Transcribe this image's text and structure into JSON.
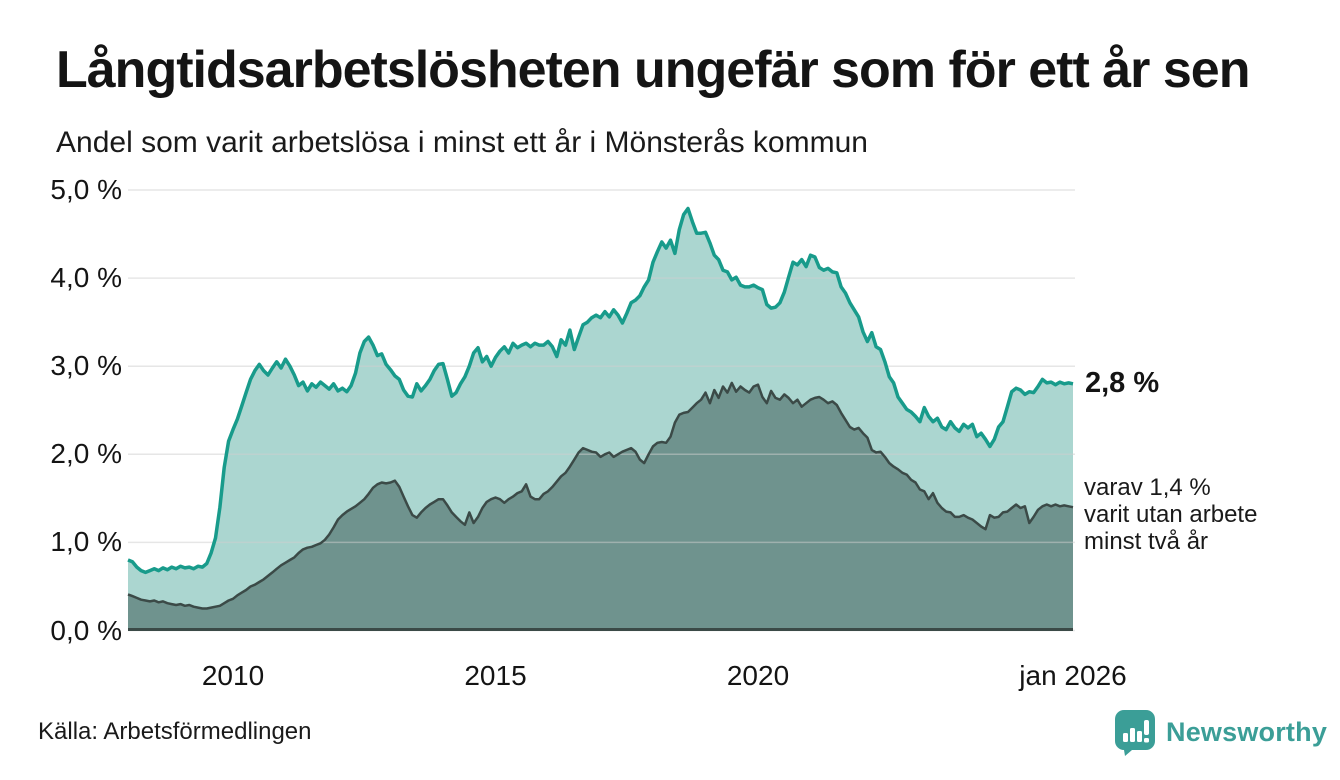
{
  "colors": {
    "accent_teal_line": "#189b8b",
    "fill_light_teal": "#abd6d0",
    "fill_dark_green": "#6f938e",
    "dark_line": "#3b4a47",
    "gridline": "#cfcfcf",
    "text": "#141414",
    "brand_teal": "#3b9e97"
  },
  "footer": {
    "source": "Källa: Arbetsförmedlingen",
    "brand": "Newsworthy",
    "brand_icon": "newsworthy-bar-chart-bubble"
  },
  "annotations": {
    "latest_value": "2,8 %",
    "latest_value_numeric": 2.8,
    "note_lines": [
      "varav 1,4 %",
      "varit utan arbete",
      "minst två år"
    ],
    "note_value_numeric": 1.4
  },
  "chart_data": {
    "type": "area",
    "title": "Långtidsarbetslösheten ungefär som för ett år sen",
    "subtitle": "Andel som varit arbetslösa i minst ett år i Mönsterås kommun",
    "x_start": "2008-01",
    "x_end": "2026-01",
    "frequency": "monthly",
    "xlim_years": [
      2008,
      2026
    ],
    "ylim": [
      0,
      5
    ],
    "grid": "horizontal",
    "legend": "direct-labels-right",
    "y_ticks": [
      {
        "value": 5,
        "label": "5,0 %"
      },
      {
        "value": 4,
        "label": "4,0 %"
      },
      {
        "value": 3,
        "label": "3,0 %"
      },
      {
        "value": 2,
        "label": "2,0 %"
      },
      {
        "value": 1,
        "label": "1,0 %"
      },
      {
        "value": 0,
        "label": "0,0 %"
      }
    ],
    "x_ticks": [
      {
        "year": 2010,
        "label": "2010"
      },
      {
        "year": 2015,
        "label": "2015"
      },
      {
        "year": 2020,
        "label": "2020"
      },
      {
        "year": 2026,
        "label": "jan 2026"
      }
    ],
    "series": [
      {
        "name": "Arbetslösa minst ett år",
        "line_color": "#189b8b",
        "fill_color": "#abd6d0",
        "end_label": "2,8 %",
        "values": [
          0.8,
          0.78,
          0.72,
          0.68,
          0.66,
          0.68,
          0.7,
          0.68,
          0.71,
          0.69,
          0.72,
          0.7,
          0.73,
          0.71,
          0.72,
          0.7,
          0.73,
          0.72,
          0.76,
          0.88,
          1.05,
          1.4,
          1.85,
          2.15,
          2.28,
          2.4,
          2.55,
          2.7,
          2.85,
          2.95,
          3.02,
          2.95,
          2.9,
          2.98,
          3.05,
          2.98,
          3.08,
          3.0,
          2.9,
          2.78,
          2.82,
          2.72,
          2.8,
          2.76,
          2.82,
          2.78,
          2.74,
          2.8,
          2.72,
          2.75,
          2.71,
          2.78,
          2.92,
          3.15,
          3.28,
          3.33,
          3.24,
          3.12,
          3.14,
          3.02,
          2.96,
          2.89,
          2.85,
          2.73,
          2.66,
          2.65,
          2.8,
          2.72,
          2.78,
          2.85,
          2.95,
          3.02,
          3.03,
          2.85,
          2.66,
          2.7,
          2.8,
          2.88,
          3.0,
          3.15,
          3.21,
          3.05,
          3.11,
          3.0,
          3.1,
          3.17,
          3.22,
          3.15,
          3.26,
          3.21,
          3.24,
          3.26,
          3.22,
          3.26,
          3.24,
          3.24,
          3.28,
          3.22,
          3.11,
          3.3,
          3.24,
          3.41,
          3.19,
          3.33,
          3.47,
          3.5,
          3.55,
          3.58,
          3.55,
          3.62,
          3.56,
          3.64,
          3.58,
          3.49,
          3.6,
          3.72,
          3.75,
          3.8,
          3.9,
          3.98,
          4.18,
          4.3,
          4.41,
          4.34,
          4.43,
          4.28,
          4.55,
          4.72,
          4.79,
          4.64,
          4.51,
          4.51,
          4.52,
          4.4,
          4.26,
          4.21,
          4.09,
          4.07,
          3.98,
          4.01,
          3.92,
          3.9,
          3.9,
          3.92,
          3.89,
          3.87,
          3.7,
          3.66,
          3.67,
          3.72,
          3.84,
          4.01,
          4.18,
          4.15,
          4.21,
          4.13,
          4.26,
          4.24,
          4.12,
          4.09,
          4.11,
          4.07,
          4.06,
          3.9,
          3.83,
          3.72,
          3.64,
          3.56,
          3.39,
          3.28,
          3.38,
          3.22,
          3.19,
          3.05,
          2.88,
          2.81,
          2.65,
          2.58,
          2.51,
          2.48,
          2.43,
          2.37,
          2.53,
          2.43,
          2.37,
          2.41,
          2.31,
          2.28,
          2.37,
          2.3,
          2.26,
          2.34,
          2.3,
          2.34,
          2.2,
          2.24,
          2.17,
          2.09,
          2.17,
          2.31,
          2.37,
          2.54,
          2.71,
          2.75,
          2.73,
          2.68,
          2.71,
          2.7,
          2.77,
          2.85,
          2.81,
          2.82,
          2.79,
          2.82,
          2.8,
          2.81,
          2.8
        ]
      },
      {
        "name": "varav utan arbete minst två år",
        "line_color": "#3b4a47",
        "fill_color": "#6f938e",
        "end_label": "varav 1,4 % varit utan arbete minst två år",
        "values": [
          0.41,
          0.39,
          0.37,
          0.35,
          0.34,
          0.33,
          0.34,
          0.32,
          0.33,
          0.31,
          0.3,
          0.29,
          0.3,
          0.28,
          0.29,
          0.27,
          0.26,
          0.25,
          0.25,
          0.26,
          0.27,
          0.28,
          0.31,
          0.34,
          0.36,
          0.4,
          0.43,
          0.46,
          0.5,
          0.52,
          0.55,
          0.58,
          0.62,
          0.66,
          0.7,
          0.74,
          0.77,
          0.8,
          0.83,
          0.88,
          0.92,
          0.94,
          0.95,
          0.97,
          0.99,
          1.03,
          1.09,
          1.17,
          1.26,
          1.31,
          1.35,
          1.38,
          1.41,
          1.45,
          1.49,
          1.55,
          1.62,
          1.66,
          1.68,
          1.67,
          1.68,
          1.7,
          1.63,
          1.52,
          1.41,
          1.31,
          1.28,
          1.34,
          1.39,
          1.43,
          1.46,
          1.49,
          1.49,
          1.42,
          1.34,
          1.29,
          1.24,
          1.2,
          1.34,
          1.22,
          1.29,
          1.39,
          1.46,
          1.49,
          1.51,
          1.49,
          1.45,
          1.49,
          1.52,
          1.56,
          1.58,
          1.66,
          1.52,
          1.49,
          1.49,
          1.55,
          1.58,
          1.63,
          1.69,
          1.75,
          1.79,
          1.86,
          1.94,
          2.02,
          2.07,
          2.05,
          2.03,
          2.02,
          1.97,
          2.0,
          2.02,
          1.97,
          2.0,
          2.03,
          2.05,
          2.07,
          2.03,
          1.94,
          1.9,
          2.0,
          2.09,
          2.13,
          2.14,
          2.13,
          2.2,
          2.36,
          2.45,
          2.47,
          2.48,
          2.53,
          2.58,
          2.62,
          2.7,
          2.58,
          2.73,
          2.64,
          2.77,
          2.7,
          2.81,
          2.71,
          2.77,
          2.73,
          2.7,
          2.77,
          2.79,
          2.65,
          2.58,
          2.72,
          2.64,
          2.62,
          2.68,
          2.64,
          2.58,
          2.62,
          2.54,
          2.58,
          2.62,
          2.64,
          2.65,
          2.62,
          2.58,
          2.6,
          2.56,
          2.47,
          2.39,
          2.31,
          2.28,
          2.3,
          2.24,
          2.19,
          2.05,
          2.02,
          2.03,
          1.97,
          1.9,
          1.86,
          1.83,
          1.79,
          1.77,
          1.71,
          1.68,
          1.6,
          1.58,
          1.49,
          1.56,
          1.45,
          1.39,
          1.35,
          1.34,
          1.29,
          1.29,
          1.31,
          1.28,
          1.26,
          1.22,
          1.18,
          1.15,
          1.31,
          1.28,
          1.29,
          1.34,
          1.35,
          1.39,
          1.43,
          1.39,
          1.41,
          1.22,
          1.29,
          1.37,
          1.41,
          1.43,
          1.41,
          1.43,
          1.41,
          1.42,
          1.41,
          1.4
        ]
      }
    ]
  }
}
